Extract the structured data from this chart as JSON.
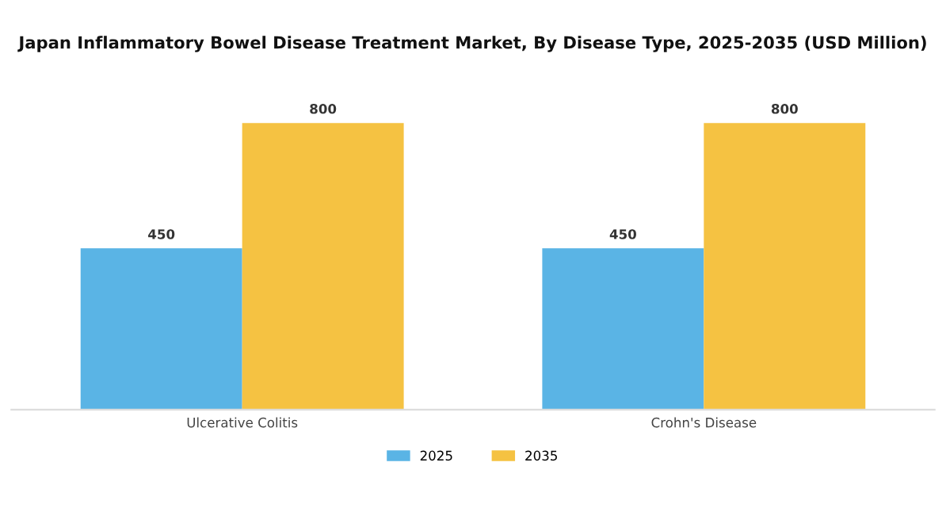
{
  "chart_data": {
    "type": "bar",
    "title": "Japan Inflammatory Bowel Disease Treatment Market, By Disease Type, 2025-2035 (USD Million)",
    "categories": [
      "Ulcerative Colitis",
      "Crohn's Disease"
    ],
    "series": [
      {
        "name": "2025",
        "color": "#5ab4e5",
        "values": [
          450,
          450
        ]
      },
      {
        "name": "2035",
        "color": "#f5c242",
        "values": [
          800,
          800
        ]
      }
    ],
    "tick_labels": "x",
    "data_labels": true,
    "legend": "bottom",
    "grid": false
  }
}
